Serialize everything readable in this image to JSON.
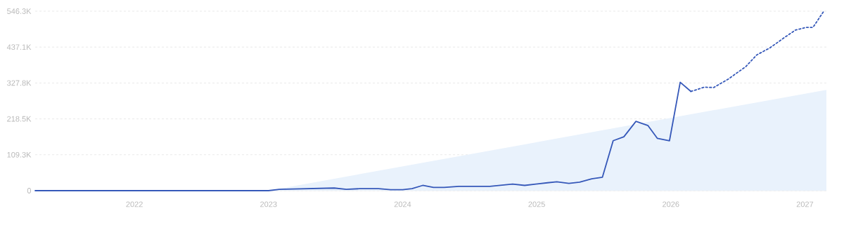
{
  "chart_data": {
    "type": "line",
    "xlim": [
      2021.26,
      2027.16
    ],
    "xticks": [
      2022,
      2023,
      2024,
      2025,
      2026,
      2027
    ],
    "ylim": [
      0,
      546300
    ],
    "yticks": [
      0,
      {
        "value": 109300,
        "label": "109.3K"
      },
      {
        "value": 218500,
        "label": "218.5K"
      },
      {
        "value": 327800,
        "label": "327.8K"
      },
      {
        "value": 437100,
        "label": "437.1K"
      },
      {
        "value": 546300,
        "label": "546.3K"
      }
    ],
    "grid": "y",
    "series": [
      {
        "type": "area",
        "color": "#e9f2fc",
        "x": [
          2023.0,
          2027.16
        ],
        "values": [
          0,
          307000
        ]
      },
      {
        "color": "#3558b9",
        "line_style": "solid",
        "x": [
          2021.26,
          2023.0,
          2023.08,
          2023.49,
          2023.58,
          2023.68,
          2023.82,
          2023.91,
          2024.0,
          2024.07,
          2024.15,
          2024.23,
          2024.31,
          2024.42,
          2024.65,
          2024.82,
          2024.91,
          2025.08,
          2025.15,
          2025.24,
          2025.32,
          2025.41,
          2025.49,
          2025.57,
          2025.65,
          2025.74,
          2025.83,
          2025.9,
          2025.99,
          2026.07,
          2026.15
        ],
        "values": [
          0,
          0,
          4000,
          8000,
          4000,
          6000,
          6000,
          3000,
          3000,
          6000,
          16000,
          10000,
          10000,
          13000,
          13000,
          20000,
          16000,
          24000,
          27000,
          22000,
          26000,
          36000,
          41000,
          152000,
          164000,
          211000,
          198000,
          159000,
          152000,
          330000,
          302000
        ]
      },
      {
        "color": "#3558b9",
        "line_style": "dotted",
        "x": [
          2026.15,
          2026.25,
          2026.32,
          2026.43,
          2026.56,
          2026.64,
          2026.74,
          2026.85,
          2026.93,
          2027.01,
          2027.06,
          2027.14
        ],
        "values": [
          302000,
          315000,
          314000,
          340000,
          378000,
          413000,
          435000,
          467000,
          489000,
          497000,
          497000,
          546000
        ]
      }
    ]
  }
}
